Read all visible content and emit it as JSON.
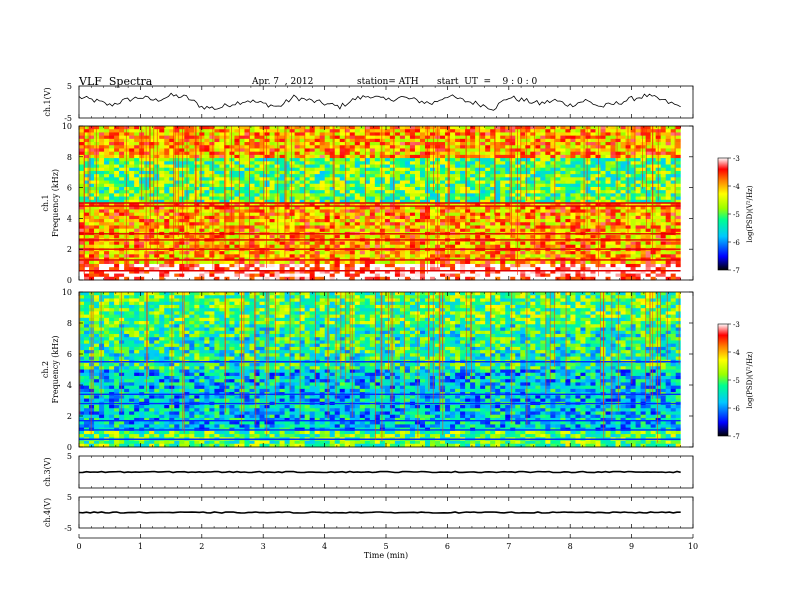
{
  "header": {
    "title": "VLF  Spectra",
    "date": "Apr. 7  , 2012",
    "station": "station= ATH",
    "start": "start  UT  =    9 : 0 : 0"
  },
  "chart_data": [
    {
      "type": "line",
      "panel": "ch1-waveform",
      "ylabel": "ch.1(V)",
      "ylim": [
        -5,
        5
      ],
      "ytick_labels": [
        "5",
        "-5"
      ],
      "x": [
        0,
        0.25,
        0.5,
        0.75,
        1,
        1.25,
        1.5,
        1.75,
        2,
        2.25,
        2.5,
        2.75,
        3,
        3.25,
        3.5,
        3.75,
        4,
        4.25,
        4.5,
        4.75,
        5,
        5.25,
        5.5,
        5.75,
        6,
        6.25,
        6.5,
        6.75,
        7,
        7.25,
        7.5,
        7.75,
        8,
        8.25,
        8.5,
        8.75,
        9,
        9.25,
        9.5,
        9.8
      ],
      "y": [
        1.5,
        0.5,
        -1,
        0.5,
        1.5,
        0.5,
        2,
        1.5,
        -1.5,
        -2,
        -0.5,
        0.5,
        -0.5,
        -1.5,
        1.5,
        0.5,
        -0.5,
        -1.5,
        1,
        2,
        0.5,
        1.5,
        0.5,
        -0.5,
        2,
        0.5,
        -0.5,
        -2,
        1.5,
        0.5,
        -0.5,
        0.5,
        -1,
        0.5,
        -1.5,
        -0.5,
        1,
        2,
        0.5,
        -1.5
      ]
    },
    {
      "type": "heatmap",
      "panel": "ch1-spectrogram",
      "ylabel": "ch.1\nFrequency  (kHz)",
      "ylim": [
        0,
        10
      ],
      "ytick_labels": [
        "0",
        "2",
        "4",
        "6",
        "8",
        "10"
      ],
      "colorbar": {
        "label": "log(PSD)(V²/Hz)",
        "range": [
          -7,
          -3
        ],
        "tick_labels": [
          "-3",
          "-4",
          "-5",
          "-6",
          "-7"
        ]
      },
      "description_levels": {
        "0-1kHz": -3,
        "1-5kHz": -4,
        "5-8kHz": -5,
        "8-10kHz": -4
      }
    },
    {
      "type": "heatmap",
      "panel": "ch2-spectrogram",
      "ylabel": "ch.2\nFrequency  (kHz)",
      "ylim": [
        0,
        10
      ],
      "ytick_labels": [
        "0",
        "2",
        "4",
        "6",
        "8",
        "10"
      ],
      "colorbar": {
        "label": "log(PSD)(V²/Hz)",
        "range": [
          -7,
          -3
        ],
        "tick_labels": [
          "-3",
          "-4",
          "-5",
          "-6",
          "-7"
        ]
      },
      "description_levels": {
        "0-1kHz": -5,
        "1-5kHz": -5.7,
        "5-8kHz": -5.3,
        "8-10kHz": -5
      }
    },
    {
      "type": "line",
      "panel": "ch3-waveform",
      "ylabel": "ch.3(V)",
      "ylim": [
        -5,
        5
      ],
      "ytick_labels": [
        "5"
      ],
      "x": [
        0,
        9.8
      ],
      "y": [
        0,
        0
      ]
    },
    {
      "type": "line",
      "panel": "ch4-waveform",
      "ylabel": "ch.4(V)",
      "ylim": [
        -5,
        5
      ],
      "ytick_labels": [
        "5",
        "-5"
      ],
      "x": [
        0,
        9.8
      ],
      "y": [
        0,
        0
      ]
    }
  ],
  "xaxis": {
    "xlabel": "Time  (min)",
    "xlim": [
      0,
      10
    ],
    "tick_labels": [
      "0",
      "1",
      "2",
      "3",
      "4",
      "5",
      "6",
      "7",
      "8",
      "9",
      "10"
    ]
  }
}
